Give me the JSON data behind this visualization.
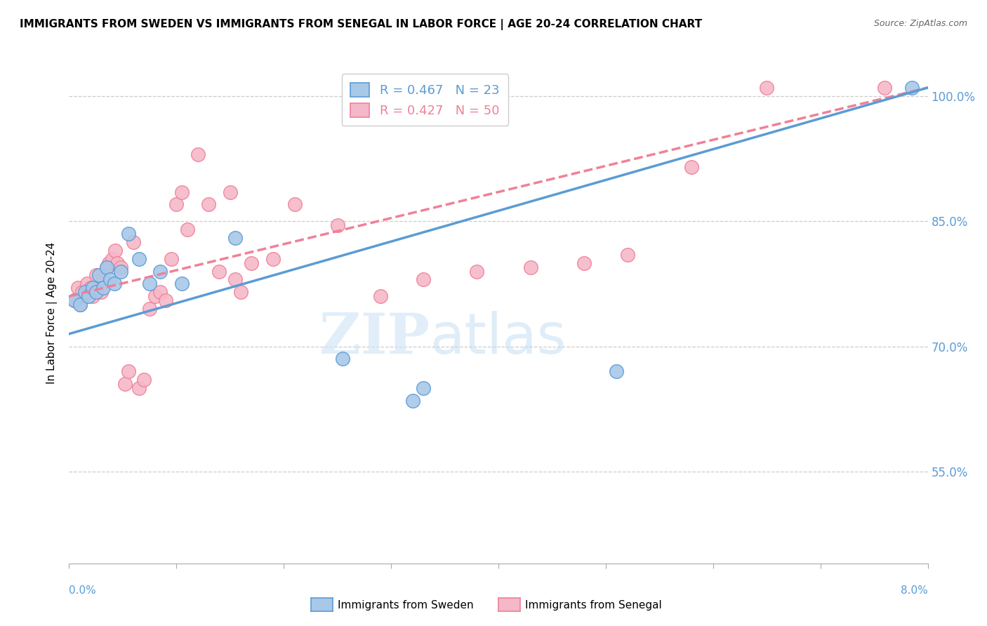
{
  "title": "IMMIGRANTS FROM SWEDEN VS IMMIGRANTS FROM SENEGAL IN LABOR FORCE | AGE 20-24 CORRELATION CHART",
  "source": "Source: ZipAtlas.com",
  "ylabel_label": "In Labor Force | Age 20-24",
  "yticks": [
    55.0,
    70.0,
    85.0,
    100.0
  ],
  "ytick_labels": [
    "55.0%",
    "70.0%",
    "85.0%",
    "100.0%"
  ],
  "xmin": 0.0,
  "xmax": 8.0,
  "ymin": 44.0,
  "ymax": 104.0,
  "legend_sweden": "Immigrants from Sweden",
  "legend_senegal": "Immigrants from Senegal",
  "R_sweden": 0.467,
  "N_sweden": 23,
  "R_senegal": 0.427,
  "N_senegal": 50,
  "color_sweden": "#a8c8e8",
  "color_senegal": "#f5b8c8",
  "trendline_sweden": "#5b9bd5",
  "trendline_senegal": "#f08098",
  "watermark_zip": "ZIP",
  "watermark_atlas": "atlas",
  "sweden_x": [
    0.05,
    0.1,
    0.15,
    0.18,
    0.22,
    0.25,
    0.28,
    0.32,
    0.35,
    0.38,
    0.42,
    0.48,
    0.55,
    0.65,
    0.75,
    0.85,
    1.05,
    1.55,
    2.55,
    3.2,
    3.3,
    5.1,
    7.85
  ],
  "sweden_y": [
    75.5,
    75.0,
    76.5,
    76.0,
    77.0,
    76.5,
    78.5,
    77.0,
    79.5,
    78.0,
    77.5,
    79.0,
    83.5,
    80.5,
    77.5,
    79.0,
    77.5,
    83.0,
    68.5,
    63.5,
    65.0,
    67.0,
    101.0
  ],
  "senegal_x": [
    0.05,
    0.08,
    0.1,
    0.12,
    0.15,
    0.17,
    0.2,
    0.22,
    0.25,
    0.27,
    0.3,
    0.32,
    0.35,
    0.37,
    0.4,
    0.43,
    0.45,
    0.48,
    0.52,
    0.55,
    0.6,
    0.65,
    0.7,
    0.75,
    0.8,
    0.85,
    0.9,
    0.95,
    1.0,
    1.05,
    1.1,
    1.2,
    1.3,
    1.4,
    1.5,
    1.55,
    1.6,
    1.7,
    1.9,
    2.1,
    2.5,
    2.9,
    3.3,
    3.8,
    4.3,
    4.8,
    5.2,
    5.8,
    6.5,
    7.6
  ],
  "senegal_y": [
    75.5,
    77.0,
    75.0,
    76.5,
    76.0,
    77.5,
    77.0,
    76.0,
    78.5,
    77.0,
    76.5,
    78.0,
    79.5,
    80.0,
    80.5,
    81.5,
    80.0,
    79.5,
    65.5,
    67.0,
    82.5,
    65.0,
    66.0,
    74.5,
    76.0,
    76.5,
    75.5,
    80.5,
    87.0,
    88.5,
    84.0,
    93.0,
    87.0,
    79.0,
    88.5,
    78.0,
    76.5,
    80.0,
    80.5,
    87.0,
    84.5,
    76.0,
    78.0,
    79.0,
    79.5,
    80.0,
    81.0,
    91.5,
    101.0,
    101.0
  ],
  "trendline_sw_x0": 0.0,
  "trendline_sw_y0": 71.5,
  "trendline_sw_x1": 8.0,
  "trendline_sw_y1": 101.0,
  "trendline_sn_x0": 0.0,
  "trendline_sn_y0": 76.0,
  "trendline_sn_x1": 8.0,
  "trendline_sn_y1": 101.0
}
